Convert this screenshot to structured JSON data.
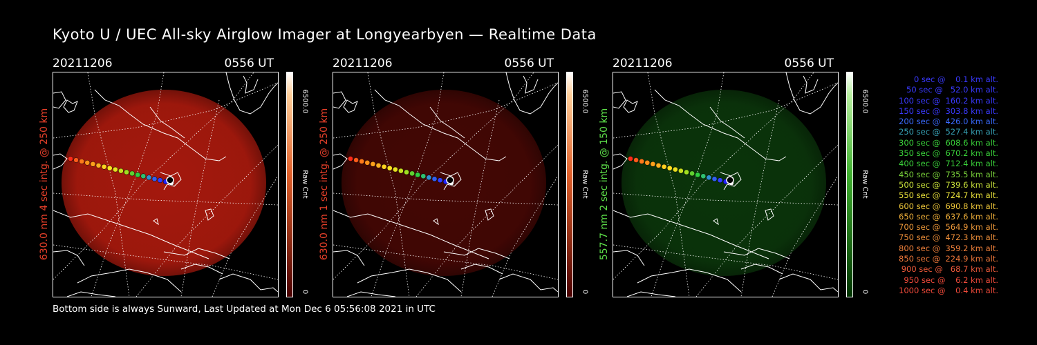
{
  "title": "Kyoto U / UEC All-sky Airglow Imager at Longyearbyen — Realtime Data",
  "footer": "Bottom side is always Sunward, Last Updated at Mon Dec  6 05:56:08 2021 in UTC",
  "panels": [
    {
      "date": "20211206",
      "time": "0556 UT",
      "label": "630.0 nm 4 sec intg. @ 250 km",
      "label_color": "#e8402a",
      "cbar_max": "6500.0",
      "cbar_unit": "Raw Cnt",
      "cbar_min": "0",
      "glow_color": "#c81e10",
      "glow_opacity": 0.82,
      "bar_top": "#ffffff",
      "bar_bottom": "#4a0000"
    },
    {
      "date": "20211206",
      "time": "0556 UT",
      "label": "630.0 nm 1 sec intg. @ 250 km",
      "label_color": "#e8402a",
      "cbar_max": "6500.0",
      "cbar_unit": "Raw Cnt",
      "cbar_min": "0",
      "glow_color": "#7a0d08",
      "glow_opacity": 0.55,
      "bar_top": "#ffffff",
      "bar_bottom": "#4a0000"
    },
    {
      "date": "20211206",
      "time": "0556 UT",
      "label": "557.7 nm 2 sec intg. @ 150 km",
      "label_color": "#5ee04a",
      "cbar_max": "6500.0",
      "cbar_unit": "Raw Cnt",
      "cbar_min": "0",
      "glow_color": "#0f4a0f",
      "glow_opacity": 0.7,
      "bar_top": "#ffffff",
      "bar_bottom": "#003300"
    }
  ],
  "legend": [
    {
      "text": "0 sec @    0.1 km alt.",
      "color": "#3a3aff"
    },
    {
      "text": "50 sec @   52.0 km alt.",
      "color": "#3a3aff"
    },
    {
      "text": "100 sec @  160.2 km alt.",
      "color": "#3a3aff"
    },
    {
      "text": "150 sec @  303.8 km alt.",
      "color": "#3a3aff"
    },
    {
      "text": "200 sec @  426.0 km alt.",
      "color": "#3a6aff"
    },
    {
      "text": "250 sec @  527.4 km alt.",
      "color": "#36a0b4"
    },
    {
      "text": "300 sec @  608.6 km alt.",
      "color": "#3ad23a"
    },
    {
      "text": "350 sec @  670.2 km alt.",
      "color": "#3ad23a"
    },
    {
      "text": "400 sec @  712.4 km alt.",
      "color": "#3ad23a"
    },
    {
      "text": "450 sec @  735.5 km alt.",
      "color": "#7ad23a"
    },
    {
      "text": "500 sec @  739.6 km alt.",
      "color": "#c8e03a"
    },
    {
      "text": "550 sec @  724.7 km alt.",
      "color": "#e8e03a"
    },
    {
      "text": "600 sec @  690.8 km alt.",
      "color": "#f0c83a"
    },
    {
      "text": "650 sec @  637.6 km alt.",
      "color": "#f0b03a"
    },
    {
      "text": "700 sec @  564.9 km alt.",
      "color": "#f09a3a"
    },
    {
      "text": "750 sec @  472.3 km alt.",
      "color": "#f0903a"
    },
    {
      "text": "800 sec @  359.2 km alt.",
      "color": "#f0803a"
    },
    {
      "text": "850 sec @  224.9 km alt.",
      "color": "#f0783a"
    },
    {
      "text": "900 sec @   68.7 km alt.",
      "color": "#f05a3a"
    },
    {
      "text": "950 sec @    6.2 km alt.",
      "color": "#f04a3a"
    },
    {
      "text": "1000 sec @    0.4 km alt.",
      "color": "#f04a3a"
    }
  ],
  "track_colors": [
    "#ff2a1a",
    "#ff5a1a",
    "#ff7a1a",
    "#ff901a",
    "#ffa01a",
    "#ffb020",
    "#ffd020",
    "#ffe020",
    "#e8e020",
    "#c8e020",
    "#a0e020",
    "#60d030",
    "#30d040",
    "#30c070",
    "#3090d0",
    "#3060f0",
    "#3040ff",
    "#2020ff",
    "#ffffff"
  ]
}
